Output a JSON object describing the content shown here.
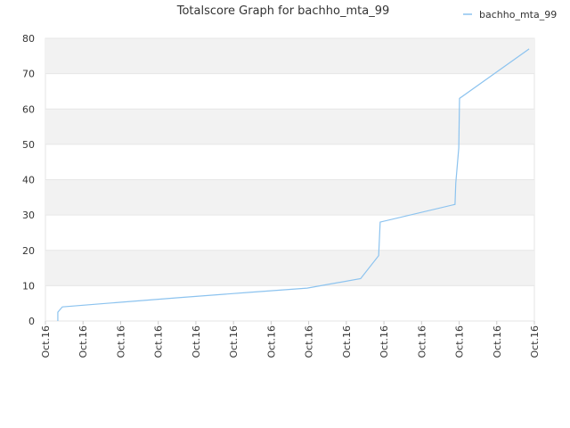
{
  "chart_data": {
    "type": "line",
    "title": "Totalscore Graph for bachho_mta_99",
    "series": [
      {
        "name": "bachho_mta_99",
        "color": "#8cc3ef",
        "x": [
          0.33,
          0.33,
          0.45,
          1.63,
          3.53,
          5.42,
          6.96,
          8.38,
          8.86,
          8.9,
          10.89,
          10.91,
          10.99,
          11.01,
          12.86
        ],
        "values": [
          0,
          2.5,
          4,
          5,
          6.6,
          8.1,
          9.3,
          12,
          18.5,
          28,
          33,
          39,
          49,
          63,
          77
        ]
      }
    ],
    "xlim": [
      0,
      13
    ],
    "xticks": [
      {
        "value": 0,
        "label": "Oct.16"
      },
      {
        "value": 1,
        "label": "Oct.16"
      },
      {
        "value": 2,
        "label": "Oct.16"
      },
      {
        "value": 3,
        "label": "Oct.16"
      },
      {
        "value": 4,
        "label": "Oct.16"
      },
      {
        "value": 5,
        "label": "Oct.16"
      },
      {
        "value": 6,
        "label": "Oct.16"
      },
      {
        "value": 7,
        "label": "Oct.16"
      },
      {
        "value": 8,
        "label": "Oct.16"
      },
      {
        "value": 9,
        "label": "Oct.16"
      },
      {
        "value": 10,
        "label": "Oct.16"
      },
      {
        "value": 11,
        "label": "Oct.16"
      },
      {
        "value": 12,
        "label": "Oct.16"
      },
      {
        "value": 13,
        "label": "Oct.16"
      }
    ],
    "ylim": [
      0,
      80
    ],
    "yticks": [
      0,
      10,
      20,
      30,
      40,
      50,
      60,
      70,
      80
    ],
    "grid": true,
    "band_color": "#f2f2f2",
    "legend": "top-right"
  }
}
